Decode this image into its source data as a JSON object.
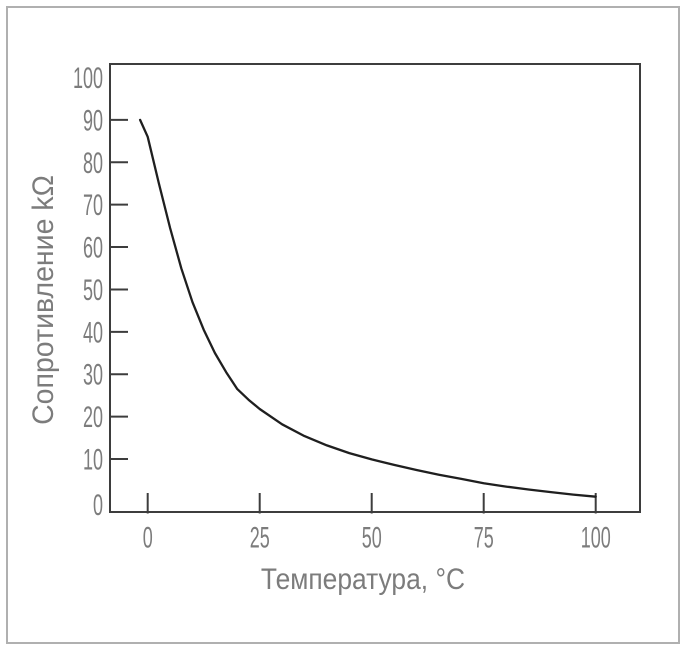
{
  "figure": {
    "background": "#ffffff",
    "frame_color": "#b0b0b0"
  },
  "chart_data": {
    "type": "line",
    "title": "",
    "xlabel": "Температура, °C",
    "ylabel": "Сопротивление kΩ",
    "xlim": [
      0,
      100
    ],
    "ylim": [
      0,
      100
    ],
    "grid": false,
    "legend": "none",
    "axis_color": "#3d3d3d",
    "label_color": "#7c7c7c",
    "line_color": "#1f1f1f",
    "x_ticks": [
      0,
      25,
      50,
      75,
      100
    ],
    "x_tick_labels": [
      "0",
      "25",
      "50",
      "75",
      "100"
    ],
    "y_ticks": [
      0,
      10,
      20,
      30,
      40,
      50,
      60,
      70,
      80,
      90,
      100
    ],
    "y_tick_labels": [
      "0",
      "10",
      "20",
      "30",
      "40",
      "50",
      "60",
      "70",
      "80",
      "90",
      "100"
    ],
    "series": [
      {
        "name": "resistance_vs_temperature",
        "x": [
          -1.7,
          0,
          2.5,
          5,
          7.5,
          10,
          12.5,
          15,
          17.5,
          20,
          22.5,
          25,
          30,
          35,
          40,
          45,
          50,
          55,
          60,
          65,
          70,
          75,
          80,
          85,
          90,
          95,
          100
        ],
        "y": [
          90,
          86,
          75,
          64.5,
          55,
          47,
          40.5,
          35,
          30.5,
          26.5,
          24,
          21.8,
          18.2,
          15.4,
          13.2,
          11.4,
          9.9,
          8.6,
          7.4,
          6.3,
          5.3,
          4.3,
          3.5,
          2.8,
          2.2,
          1.6,
          1.1
        ]
      }
    ]
  }
}
